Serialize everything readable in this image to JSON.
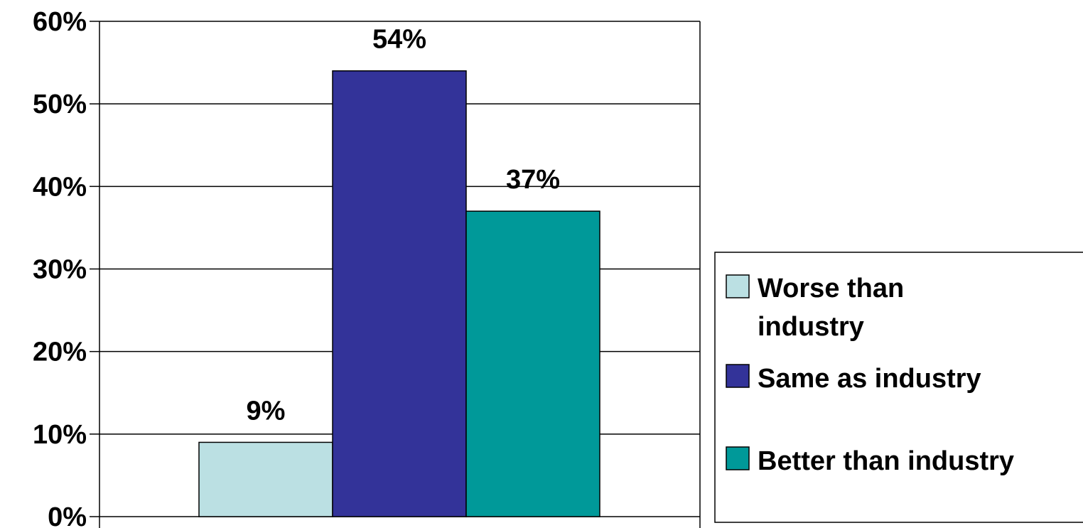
{
  "chart_data": {
    "type": "bar",
    "title": "",
    "xlabel": "",
    "ylabel": "",
    "ylim": [
      0,
      60
    ],
    "yticks": [
      0,
      10,
      20,
      30,
      40,
      50,
      60
    ],
    "ytick_labels": [
      "0%",
      "10%",
      "20%",
      "30%",
      "40%",
      "50%",
      "60%"
    ],
    "grid": true,
    "legend_position": "right",
    "series": [
      {
        "name": "Worse than industry",
        "value": 9,
        "label": "9%",
        "color": "#bbe0e3"
      },
      {
        "name": "Same as industry",
        "value": 54,
        "label": "54%",
        "color": "#333399"
      },
      {
        "name": "Better than industry",
        "value": 37,
        "label": "37%",
        "color": "#009999"
      }
    ]
  }
}
